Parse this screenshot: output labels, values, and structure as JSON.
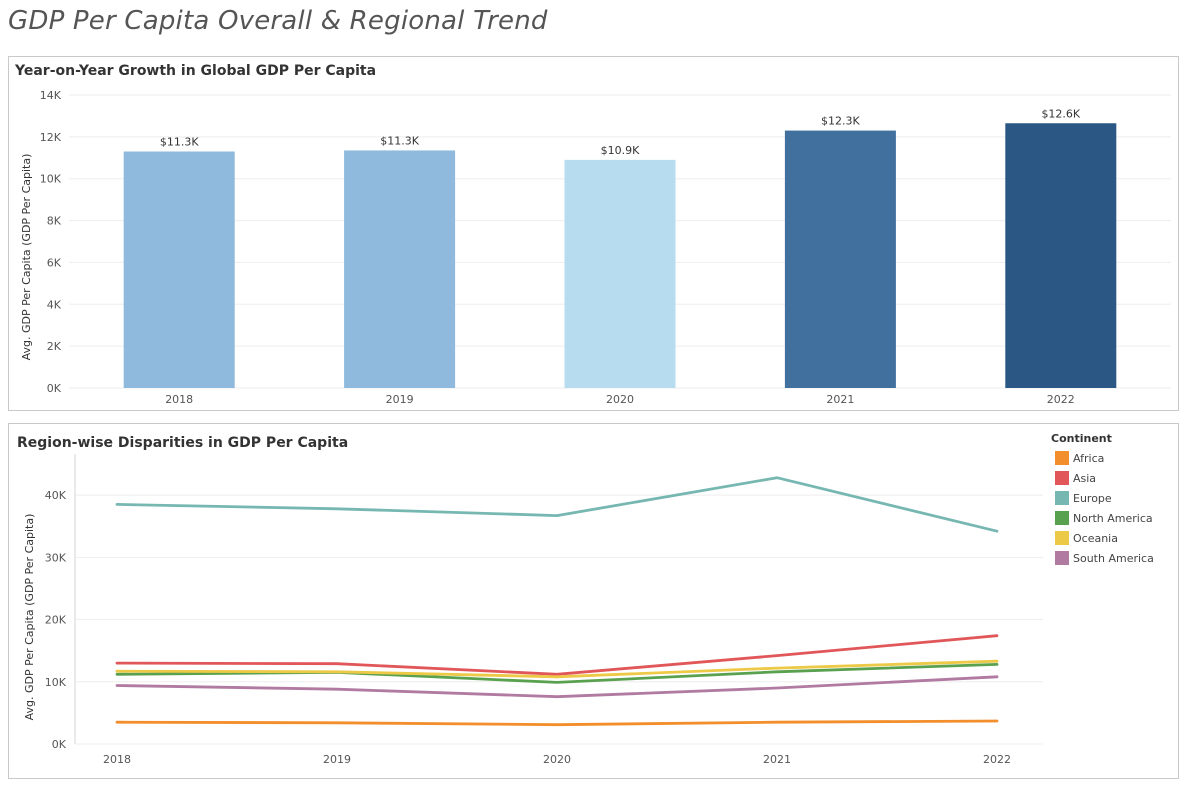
{
  "dashboard": {
    "title": "GDP Per Capita Overall & Regional Trend"
  },
  "chart_data": [
    {
      "type": "bar",
      "title": "Year-on-Year Growth in Global GDP Per Capita",
      "xlabel": "",
      "ylabel": "Avg. GDP Per Capita (GDP Per Capita)",
      "categories": [
        "2018",
        "2019",
        "2020",
        "2021",
        "2022"
      ],
      "values": [
        11300,
        11350,
        10900,
        12300,
        12650
      ],
      "data_labels": [
        "$11.3K",
        "$11.3K",
        "$10.9K",
        "$12.3K",
        "$12.6K"
      ],
      "bar_colors": [
        "#8fbadd",
        "#8fbadd",
        "#b7dcf0",
        "#41709e",
        "#2a5783"
      ],
      "ylim": [
        0,
        14000
      ],
      "yticks": [
        0,
        2000,
        4000,
        6000,
        8000,
        10000,
        12000,
        14000
      ],
      "ytick_labels": [
        "0K",
        "2K",
        "4K",
        "6K",
        "8K",
        "10K",
        "12K",
        "14K"
      ],
      "grid": true
    },
    {
      "type": "line",
      "title": "Region-wise Disparities in GDP Per Capita",
      "xlabel": "",
      "ylabel": "Avg. GDP Per Capita (GDP Per Capita)",
      "x": [
        "2018",
        "2019",
        "2020",
        "2021",
        "2022"
      ],
      "ylim": [
        0,
        45000
      ],
      "yticks": [
        0,
        10000,
        20000,
        30000,
        40000
      ],
      "ytick_labels": [
        "0K",
        "10K",
        "20K",
        "30K",
        "40K"
      ],
      "grid": true,
      "legend_title": "Continent",
      "legend_position": "right",
      "series": [
        {
          "name": "Africa",
          "color": "#f28e2b",
          "values": [
            3500,
            3400,
            3100,
            3500,
            3700
          ]
        },
        {
          "name": "Asia",
          "color": "#e15759",
          "values": [
            13000,
            12900,
            11200,
            14200,
            17400
          ]
        },
        {
          "name": "Europe",
          "color": "#76b7b2",
          "values": [
            38500,
            37800,
            36700,
            42800,
            34200
          ]
        },
        {
          "name": "North America",
          "color": "#59a14f",
          "values": [
            11200,
            11500,
            9900,
            11600,
            12800
          ]
        },
        {
          "name": "Oceania",
          "color": "#edc948",
          "values": [
            11700,
            11600,
            10800,
            12200,
            13300
          ]
        },
        {
          "name": "South America",
          "color": "#b07aa1",
          "values": [
            9400,
            8800,
            7600,
            9000,
            10800
          ]
        }
      ]
    }
  ]
}
